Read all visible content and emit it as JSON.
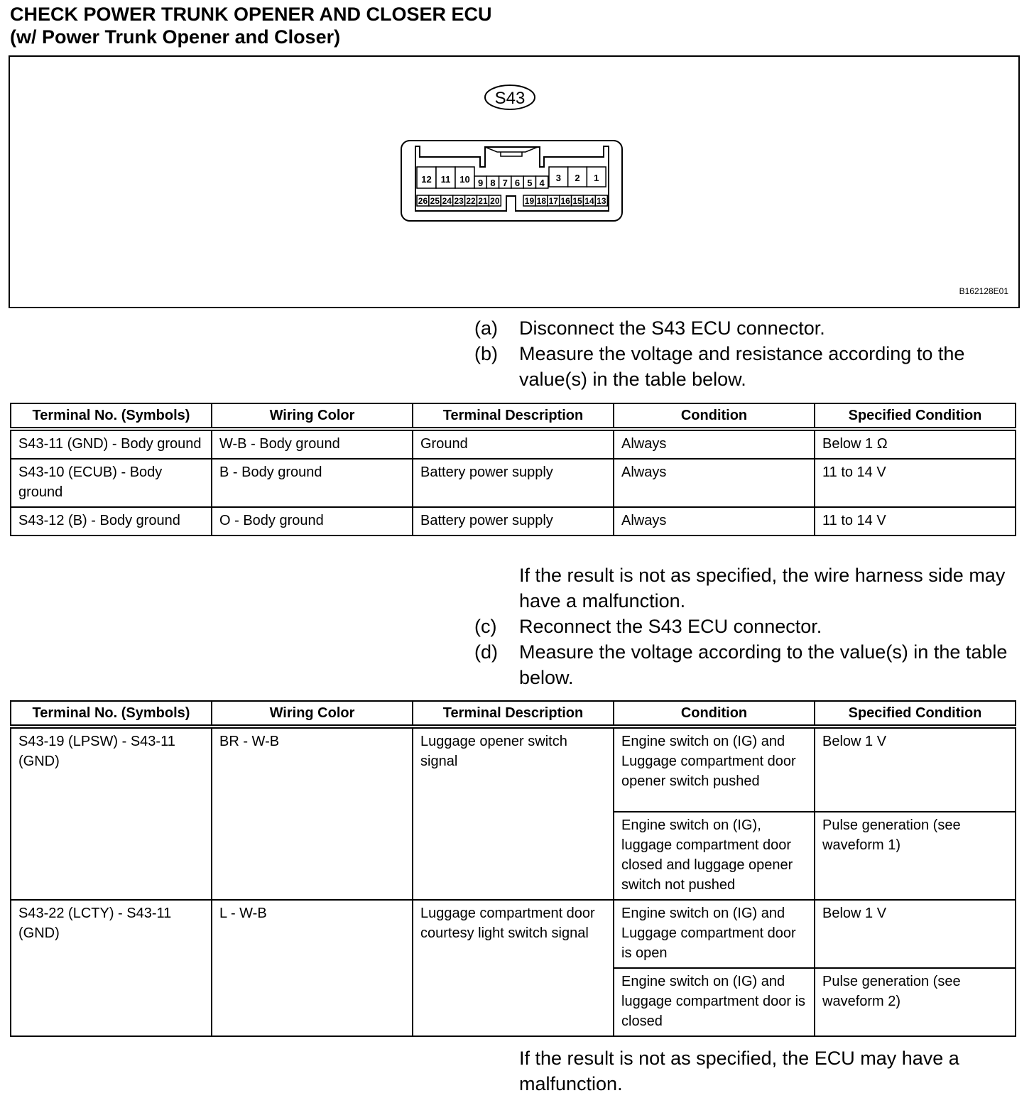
{
  "title": {
    "line1": "CHECK POWER TRUNK OPENER AND CLOSER ECU",
    "line2": "(w/ Power Trunk Opener and Closer)"
  },
  "figure": {
    "connector_label": "S43",
    "code": "B162128E01",
    "top_large_left": [
      "12",
      "11",
      "10"
    ],
    "top_small": [
      "9",
      "8",
      "7",
      "6",
      "5",
      "4"
    ],
    "top_large_right": [
      "3",
      "2",
      "1"
    ],
    "bottom_left": [
      "26",
      "25",
      "24",
      "23",
      "22",
      "21",
      "20"
    ],
    "bottom_right": [
      "19",
      "18",
      "17",
      "16",
      "15",
      "14",
      "13"
    ]
  },
  "steps1": [
    {
      "label": "(a)",
      "text": "Disconnect the S43 ECU connector."
    },
    {
      "label": "(b)",
      "text": "Measure the voltage and resistance according to the value(s) in the table below."
    }
  ],
  "table_headers": [
    "Terminal No. (Symbols)",
    "Wiring Color",
    "Terminal Description",
    "Condition",
    "Specified Condition"
  ],
  "table1": [
    [
      "S43-11 (GND) - Body ground",
      "W-B - Body ground",
      "Ground",
      "Always",
      "Below 1 Ω"
    ],
    [
      "S43-10 (ECUB) - Body ground",
      "B - Body ground",
      "Battery power supply",
      "Always",
      "11 to 14 V"
    ],
    [
      "S43-12 (B) - Body ground",
      "O - Body ground",
      "Battery power supply",
      "Always",
      "11 to 14 V"
    ]
  ],
  "note1": "If the result is not as specified, the wire harness side may have a malfunction.",
  "steps2": [
    {
      "label": "(c)",
      "text": "Reconnect the S43 ECU connector."
    },
    {
      "label": "(d)",
      "text": "Measure the voltage according to the value(s) in the table below."
    }
  ],
  "table2": [
    {
      "terminal": "S43-19 (LPSW) - S43-11 (GND)",
      "wiring": "BR - W-B",
      "description": "Luggage opener switch signal",
      "conditions": [
        {
          "condition": "Engine switch on (IG) and Luggage compartment door opener switch pushed",
          "spec": "Below 1 V"
        },
        {
          "condition": "Engine switch on (IG), luggage compartment door closed and luggage opener switch not pushed",
          "spec": "Pulse generation (see waveform 1)"
        }
      ]
    },
    {
      "terminal": "S43-22 (LCTY) - S43-11 (GND)",
      "wiring": "L - W-B",
      "description": "Luggage compartment door courtesy light switch signal",
      "conditions": [
        {
          "condition": "Engine switch on (IG) and Luggage compartment door is open",
          "spec": "Below 1 V"
        },
        {
          "condition": "Engine switch on (IG) and luggage compartment door is closed",
          "spec": "Pulse generation (see waveform 2)"
        }
      ]
    }
  ],
  "note2": "If the result is not as specified, the ECU may have a malfunction."
}
